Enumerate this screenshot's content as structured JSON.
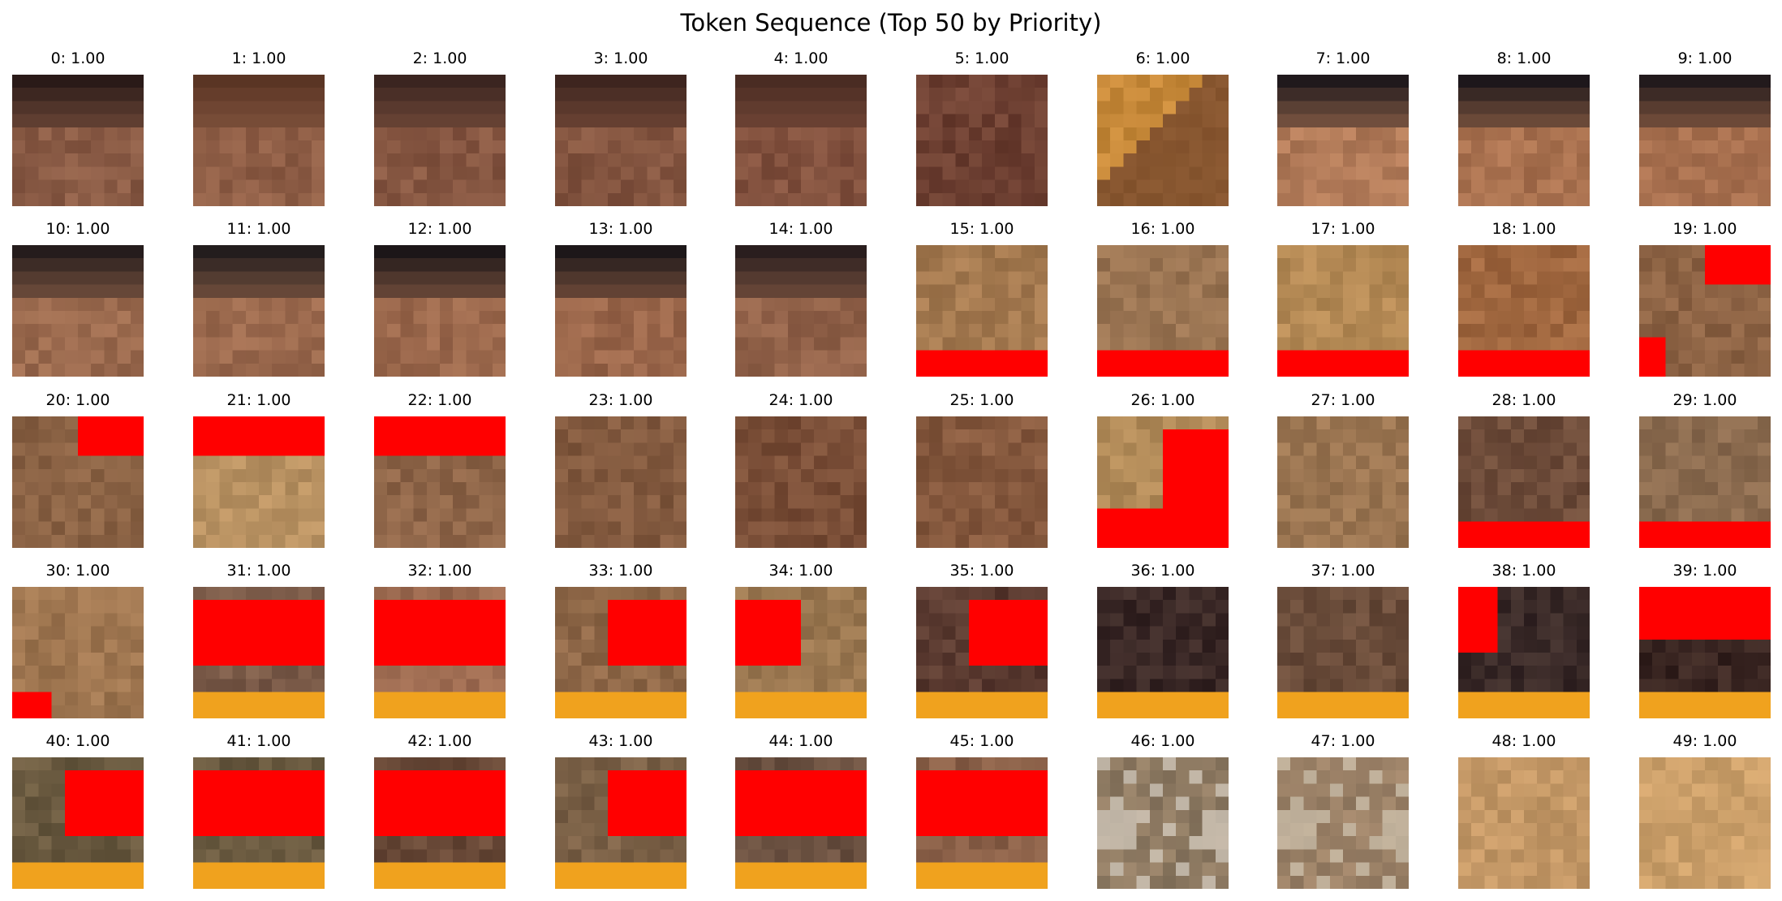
{
  "chart_data": {
    "type": "image-grid",
    "title": "Token Sequence (Top 50 by Priority)",
    "grid": {
      "rows": 5,
      "cols": 10
    },
    "tokens": [
      {
        "index": 0,
        "label": "0: 1.00",
        "score": 1.0,
        "style": "top-dark",
        "base": "#8a5b45",
        "accent": "#2a1a18"
      },
      {
        "index": 1,
        "label": "1: 1.00",
        "score": 1.0,
        "style": "top-dark",
        "base": "#8f5e46",
        "accent": "#5a3524"
      },
      {
        "index": 2,
        "label": "2: 1.00",
        "score": 1.0,
        "style": "top-dark",
        "base": "#875742",
        "accent": "#3b2520"
      },
      {
        "index": 3,
        "label": "3: 1.00",
        "score": 1.0,
        "style": "top-dark",
        "base": "#845540",
        "accent": "#3e251f"
      },
      {
        "index": 4,
        "label": "4: 1.00",
        "score": 1.0,
        "style": "top-dark",
        "base": "#82513e",
        "accent": "#4a2c23"
      },
      {
        "index": 5,
        "label": "5: 1.00",
        "score": 1.0,
        "style": "plain",
        "base": "#6e4032",
        "accent": "#5a3328"
      },
      {
        "index": 6,
        "label": "6: 1.00",
        "score": 1.0,
        "style": "diag",
        "base": "#c88a3a",
        "accent": "#5c3328"
      },
      {
        "index": 7,
        "label": "7: 1.00",
        "score": 1.0,
        "style": "top-dark",
        "base": "#b17a58",
        "accent": "#20191c"
      },
      {
        "index": 8,
        "label": "8: 1.00",
        "score": 1.0,
        "style": "top-dark",
        "base": "#a9714f",
        "accent": "#1d171b"
      },
      {
        "index": 9,
        "label": "9: 1.00",
        "score": 1.0,
        "style": "top-dark",
        "base": "#a8704f",
        "accent": "#221a1c"
      },
      {
        "index": 10,
        "label": "10: 1.00",
        "score": 1.0,
        "style": "top-dark",
        "base": "#9b6a4e",
        "accent": "#251c1c"
      },
      {
        "index": 11,
        "label": "11: 1.00",
        "score": 1.0,
        "style": "top-dark",
        "base": "#9c6a4e",
        "accent": "#231d1d"
      },
      {
        "index": 12,
        "label": "12: 1.00",
        "score": 1.0,
        "style": "top-dark",
        "base": "#9b684c",
        "accent": "#1c1618"
      },
      {
        "index": 13,
        "label": "13: 1.00",
        "score": 1.0,
        "style": "top-dark",
        "base": "#9a664a",
        "accent": "#1d1719"
      },
      {
        "index": 14,
        "label": "14: 1.00",
        "score": 1.0,
        "style": "top-dark",
        "base": "#93634a",
        "accent": "#2a1e1e"
      },
      {
        "index": 15,
        "label": "15: 1.00",
        "score": 1.0,
        "style": "red-bottom",
        "base": "#a57a50",
        "accent": "#ff0000"
      },
      {
        "index": 16,
        "label": "16: 1.00",
        "score": 1.0,
        "style": "red-bottom",
        "base": "#9a7452",
        "accent": "#ff0000"
      },
      {
        "index": 17,
        "label": "17: 1.00",
        "score": 1.0,
        "style": "red-bottom",
        "base": "#b58a55",
        "accent": "#ff0000"
      },
      {
        "index": 18,
        "label": "18: 1.00",
        "score": 1.0,
        "style": "red-bottom",
        "base": "#a0673f",
        "accent": "#ff0000"
      },
      {
        "index": 19,
        "label": "19: 1.00",
        "score": 1.0,
        "style": "red-corners",
        "base": "#8e6445",
        "accent": "#ff0000"
      },
      {
        "index": 20,
        "label": "20: 1.00",
        "score": 1.0,
        "style": "red-top-right",
        "base": "#8a6244",
        "accent": "#ff0000"
      },
      {
        "index": 21,
        "label": "21: 1.00",
        "score": 1.0,
        "style": "red-top",
        "base": "#b99262",
        "accent": "#ff0000"
      },
      {
        "index": 22,
        "label": "22: 1.00",
        "score": 1.0,
        "style": "red-top",
        "base": "#8e6548",
        "accent": "#ff0000"
      },
      {
        "index": 23,
        "label": "23: 1.00",
        "score": 1.0,
        "style": "plain",
        "base": "#835a3f",
        "accent": "#3a2418"
      },
      {
        "index": 24,
        "label": "24: 1.00",
        "score": 1.0,
        "style": "plain",
        "base": "#7a4e37",
        "accent": "#3b2519"
      },
      {
        "index": 25,
        "label": "25: 1.00",
        "score": 1.0,
        "style": "plain",
        "base": "#86593e",
        "accent": "#3a2418"
      },
      {
        "index": 26,
        "label": "26: 1.00",
        "score": 1.0,
        "style": "red-L",
        "base": "#b18a58",
        "accent": "#ff0000"
      },
      {
        "index": 27,
        "label": "27: 1.00",
        "score": 1.0,
        "style": "plain",
        "base": "#9c7652",
        "accent": "#6a4a35"
      },
      {
        "index": 28,
        "label": "28: 1.00",
        "score": 1.0,
        "style": "red-bottom",
        "base": "#6e4c3a",
        "accent": "#ff0000"
      },
      {
        "index": 29,
        "label": "29: 1.00",
        "score": 1.0,
        "style": "red-bottom",
        "base": "#8a6a4e",
        "accent": "#ff0000"
      },
      {
        "index": 30,
        "label": "30: 1.00",
        "score": 1.0,
        "style": "red-corner-bl",
        "base": "#9f7650",
        "accent": "#ff0000"
      },
      {
        "index": 31,
        "label": "31: 1.00",
        "score": 1.0,
        "style": "red-band-orange",
        "base": "#7a5a48",
        "accent": "#ff0000"
      },
      {
        "index": 32,
        "label": "32: 1.00",
        "score": 1.0,
        "style": "red-band-orange",
        "base": "#9c6a50",
        "accent": "#ff0000"
      },
      {
        "index": 33,
        "label": "33: 1.00",
        "score": 1.0,
        "style": "red-right-orange",
        "base": "#8f6848",
        "accent": "#ff0000"
      },
      {
        "index": 34,
        "label": "34: 1.00",
        "score": 1.0,
        "style": "red-left-orange",
        "base": "#9a7750",
        "accent": "#ff0000"
      },
      {
        "index": 35,
        "label": "35: 1.00",
        "score": 1.0,
        "style": "red-right-orange",
        "base": "#5a3a30",
        "accent": "#ff0000"
      },
      {
        "index": 36,
        "label": "36: 1.00",
        "score": 1.0,
        "style": "dark-orange",
        "base": "#3a2826",
        "accent": "#f0a020"
      },
      {
        "index": 37,
        "label": "37: 1.00",
        "score": 1.0,
        "style": "dark-orange",
        "base": "#6a4c3a",
        "accent": "#f0a020"
      },
      {
        "index": 38,
        "label": "38: 1.00",
        "score": 1.0,
        "style": "red-topleft-orange",
        "base": "#3a2a28",
        "accent": "#ff0000"
      },
      {
        "index": 39,
        "label": "39: 1.00",
        "score": 1.0,
        "style": "red-top-orange",
        "base": "#3a2622",
        "accent": "#ff0000"
      },
      {
        "index": 40,
        "label": "40: 1.00",
        "score": 1.0,
        "style": "red-right-orange",
        "base": "#6a5a40",
        "accent": "#ff0000"
      },
      {
        "index": 41,
        "label": "41: 1.00",
        "score": 1.0,
        "style": "red-band-orange",
        "base": "#6a5a40",
        "accent": "#ff0000"
      },
      {
        "index": 42,
        "label": "42: 1.00",
        "score": 1.0,
        "style": "red-band-orange",
        "base": "#6a4a38",
        "accent": "#ff0000"
      },
      {
        "index": 43,
        "label": "43: 1.00",
        "score": 1.0,
        "style": "red-right-orange",
        "base": "#7a6046",
        "accent": "#ff0000"
      },
      {
        "index": 44,
        "label": "44: 1.00",
        "score": 1.0,
        "style": "red-band-orange",
        "base": "#6a5040",
        "accent": "#ff0000"
      },
      {
        "index": 45,
        "label": "45: 1.00",
        "score": 1.0,
        "style": "red-band-orange",
        "base": "#8a6048",
        "accent": "#ff0000"
      },
      {
        "index": 46,
        "label": "46: 1.00",
        "score": 1.0,
        "style": "gray-mix",
        "base": "#8e7a62",
        "accent": "#d8d0c4"
      },
      {
        "index": 47,
        "label": "47: 1.00",
        "score": 1.0,
        "style": "gray-mix",
        "base": "#9a8066",
        "accent": "#cfc4b0"
      },
      {
        "index": 48,
        "label": "48: 1.00",
        "score": 1.0,
        "style": "plain",
        "base": "#c49866",
        "accent": "#b08450"
      },
      {
        "index": 49,
        "label": "49: 1.00",
        "score": 1.0,
        "style": "plain",
        "base": "#cca06a",
        "accent": "#bc9058"
      }
    ]
  }
}
